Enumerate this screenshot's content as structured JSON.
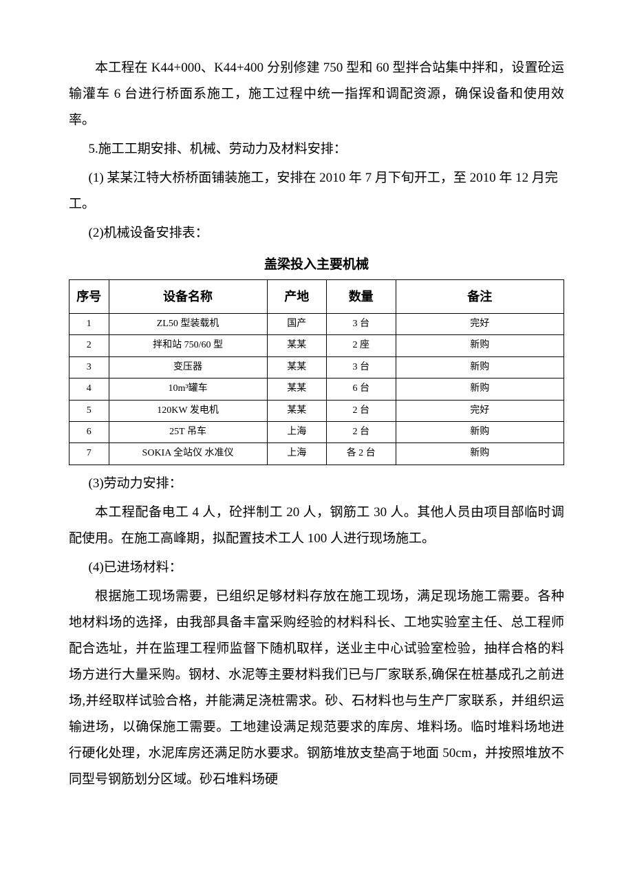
{
  "p1": "本工程在 K44+000、K44+400 分别修建 750 型和 60 型拌合站集中拌和，设置砼运输灌车 6 台进行桥面系施工，施工过程中统一指挥和调配资源，确保设备和使用效率。",
  "p2": "5.施工工期安排、机械、劳动力及材料安排：",
  "p3": "(1) 某某江特大桥桥面铺装施工，安排在 2010 年 7 月下旬开工，至 2010 年 12 月完工。",
  "p4": "(2)机械设备安排表：",
  "table_title": "盖梁投入主要机械",
  "table": {
    "headers": {
      "seq": "序号",
      "name": "设备名称",
      "origin": "产地",
      "qty": "数量",
      "note": "备注"
    },
    "rows": [
      {
        "seq": "1",
        "name": "ZL50 型装载机",
        "origin": "国产",
        "qty": "3 台",
        "note": "完好"
      },
      {
        "seq": "2",
        "name": "拌和站 750/60 型",
        "origin": "某某",
        "qty": "2 座",
        "note": "新购"
      },
      {
        "seq": "3",
        "name": "变压器",
        "origin": "某某",
        "qty": "3 台",
        "note": "新购"
      },
      {
        "seq": "4",
        "name": "10m³罐车",
        "origin": "某某",
        "qty": "6 台",
        "note": "新购"
      },
      {
        "seq": "5",
        "name": "120KW 发电机",
        "origin": "某某",
        "qty": "2 台",
        "note": "完好"
      },
      {
        "seq": "6",
        "name": "25T 吊车",
        "origin": "上海",
        "qty": "2 台",
        "note": "新购"
      },
      {
        "seq": "7",
        "name": "SOKIA 全站仪  水准仪",
        "origin": "上海",
        "qty": "各 2 台",
        "note": "新购"
      }
    ]
  },
  "p5": "(3)劳动力安排：",
  "p6": "本工程配备电工 4 人，砼拌制工 20 人，钢筋工 30 人。其他人员由项目部临时调配使用。在施工高峰期，拟配置技术工人 100 人进行现场施工。",
  "p7": "(4)已进场材料：",
  "p8": "根据施工现场需要，已组织足够材料存放在施工现场，满足现场施工需要。各种地材料场的选择，由我部具备丰富采购经验的材料科长、工地实验室主任、总工程师配合选址，并在监理工程师监督下随机取样，送业主中心试验室检验，抽样合格的料场方进行大量采购。钢材、水泥等主要材料我们已与厂家联系,确保在桩基成孔之前进场,并经取样试验合格，并能满足浇桩需求。砂、石材料也与生产厂家联系，并组织运输进场，以确保施工需要。工地建设满足规范要求的库房、堆料场。临时堆料场地进行硬化处理，水泥库房还满足防水要求。钢筋堆放支垫高于地面 50cm，并按照堆放不同型号钢筋划分区域。砂石堆料场硬"
}
